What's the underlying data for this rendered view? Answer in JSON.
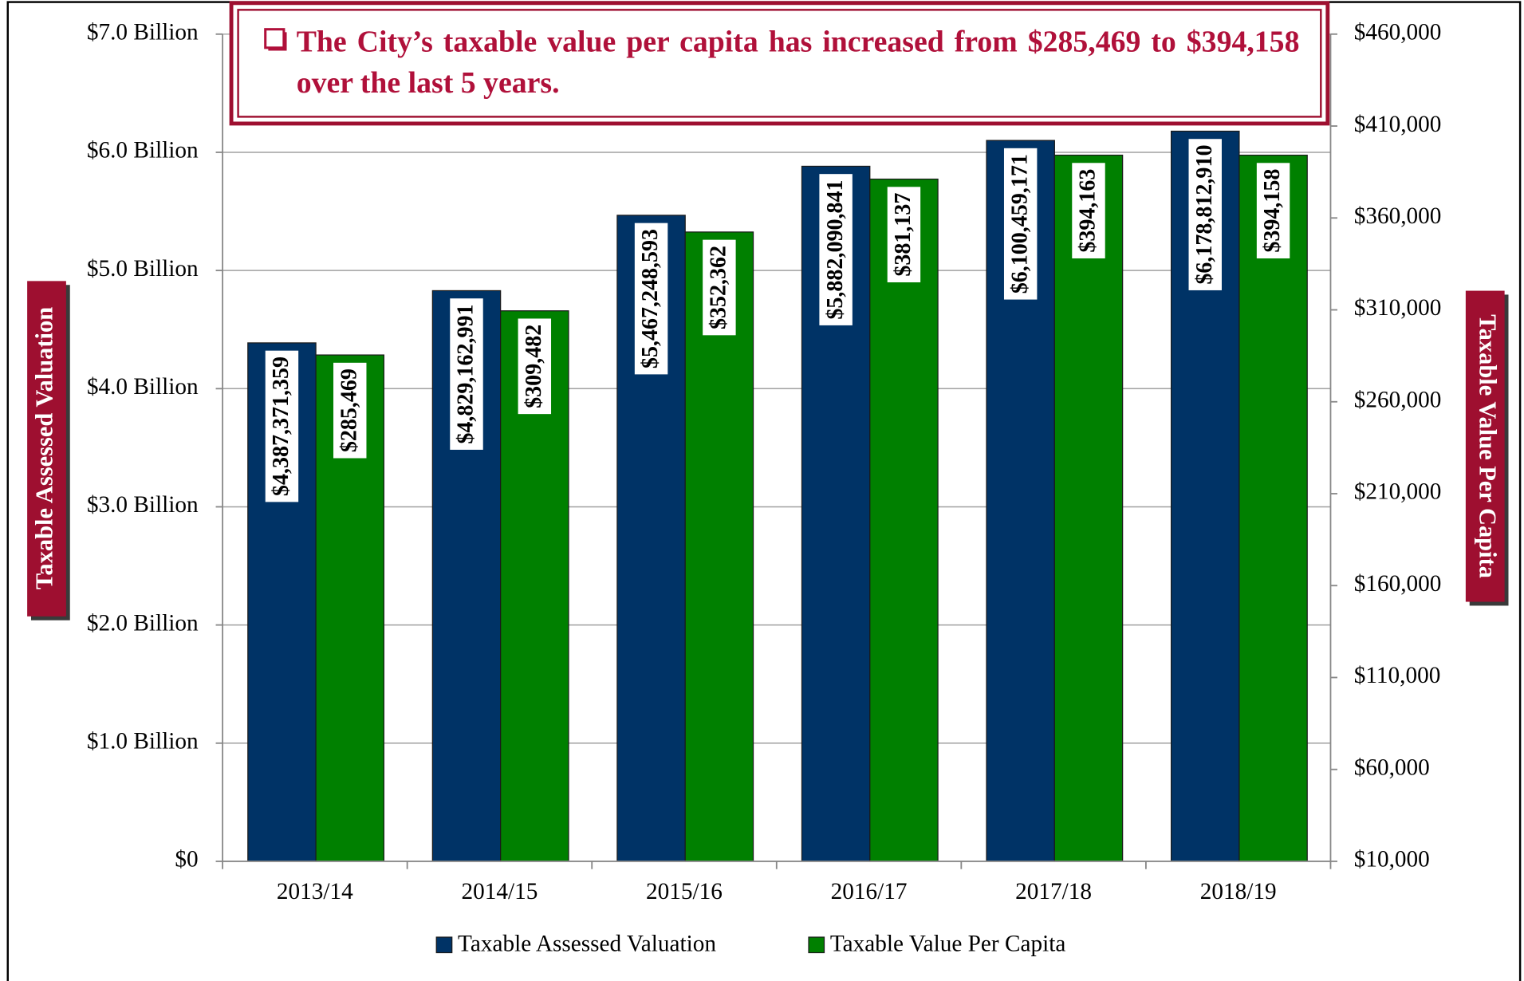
{
  "chart_data": {
    "type": "bar",
    "title": "The City’s taxable value per capita has increased from $285,469 to $394,158 over the last 5 years.",
    "categories": [
      "2013/14",
      "2014/15",
      "2015/16",
      "2016/17",
      "2017/18",
      "2018/19"
    ],
    "ylabel": "Taxable Assessed Valuation",
    "y2label": "Taxable Value Per Capita",
    "series": [
      {
        "name": "Taxable Assessed Valuation",
        "color": "#003366",
        "values": [
          4387371359,
          4829162991,
          5467248593,
          5882090841,
          6100459171,
          6178812910
        ],
        "value_labels": [
          "$4,387,371,359",
          "$4,829,162,991",
          "$5,467,248,593",
          "$5,882,090,841",
          "$6,100,459,171",
          "$6,178,812,910"
        ]
      },
      {
        "name": "Taxable Value Per Capita",
        "color": "#008000",
        "axis": "y2",
        "values": [
          285469,
          309482,
          352362,
          381137,
          394163,
          394158
        ],
        "value_labels": [
          "$285,469",
          "$309,482",
          "$352,362",
          "$381,137",
          "$394,163",
          "$394,158"
        ]
      }
    ],
    "ylim": [
      0,
      7000000000
    ],
    "yticks": [
      {
        "value": 0,
        "label": "$0"
      },
      {
        "value": 1000000000,
        "label": "$1.0 Billion"
      },
      {
        "value": 2000000000,
        "label": "$2.0 Billion"
      },
      {
        "value": 3000000000,
        "label": "$3.0 Billion"
      },
      {
        "value": 4000000000,
        "label": "$4.0 Billion"
      },
      {
        "value": 5000000000,
        "label": "$5.0 Billion"
      },
      {
        "value": 6000000000,
        "label": "$6.0 Billion"
      },
      {
        "value": 7000000000,
        "label": "$7.0 Billion"
      }
    ],
    "y2lim": [
      10000,
      460000
    ],
    "y2ticks": [
      {
        "value": 10000,
        "label": "$10,000"
      },
      {
        "value": 60000,
        "label": "$60,000"
      },
      {
        "value": 110000,
        "label": "$110,000"
      },
      {
        "value": 160000,
        "label": "$160,000"
      },
      {
        "value": 210000,
        "label": "$210,000"
      },
      {
        "value": 260000,
        "label": "$260,000"
      },
      {
        "value": 310000,
        "label": "$310,000"
      },
      {
        "value": 360000,
        "label": "$360,000"
      },
      {
        "value": 410000,
        "label": "$410,000"
      },
      {
        "value": 460000,
        "label": "$460,000"
      }
    ],
    "grid": true,
    "legend": "bottom"
  }
}
